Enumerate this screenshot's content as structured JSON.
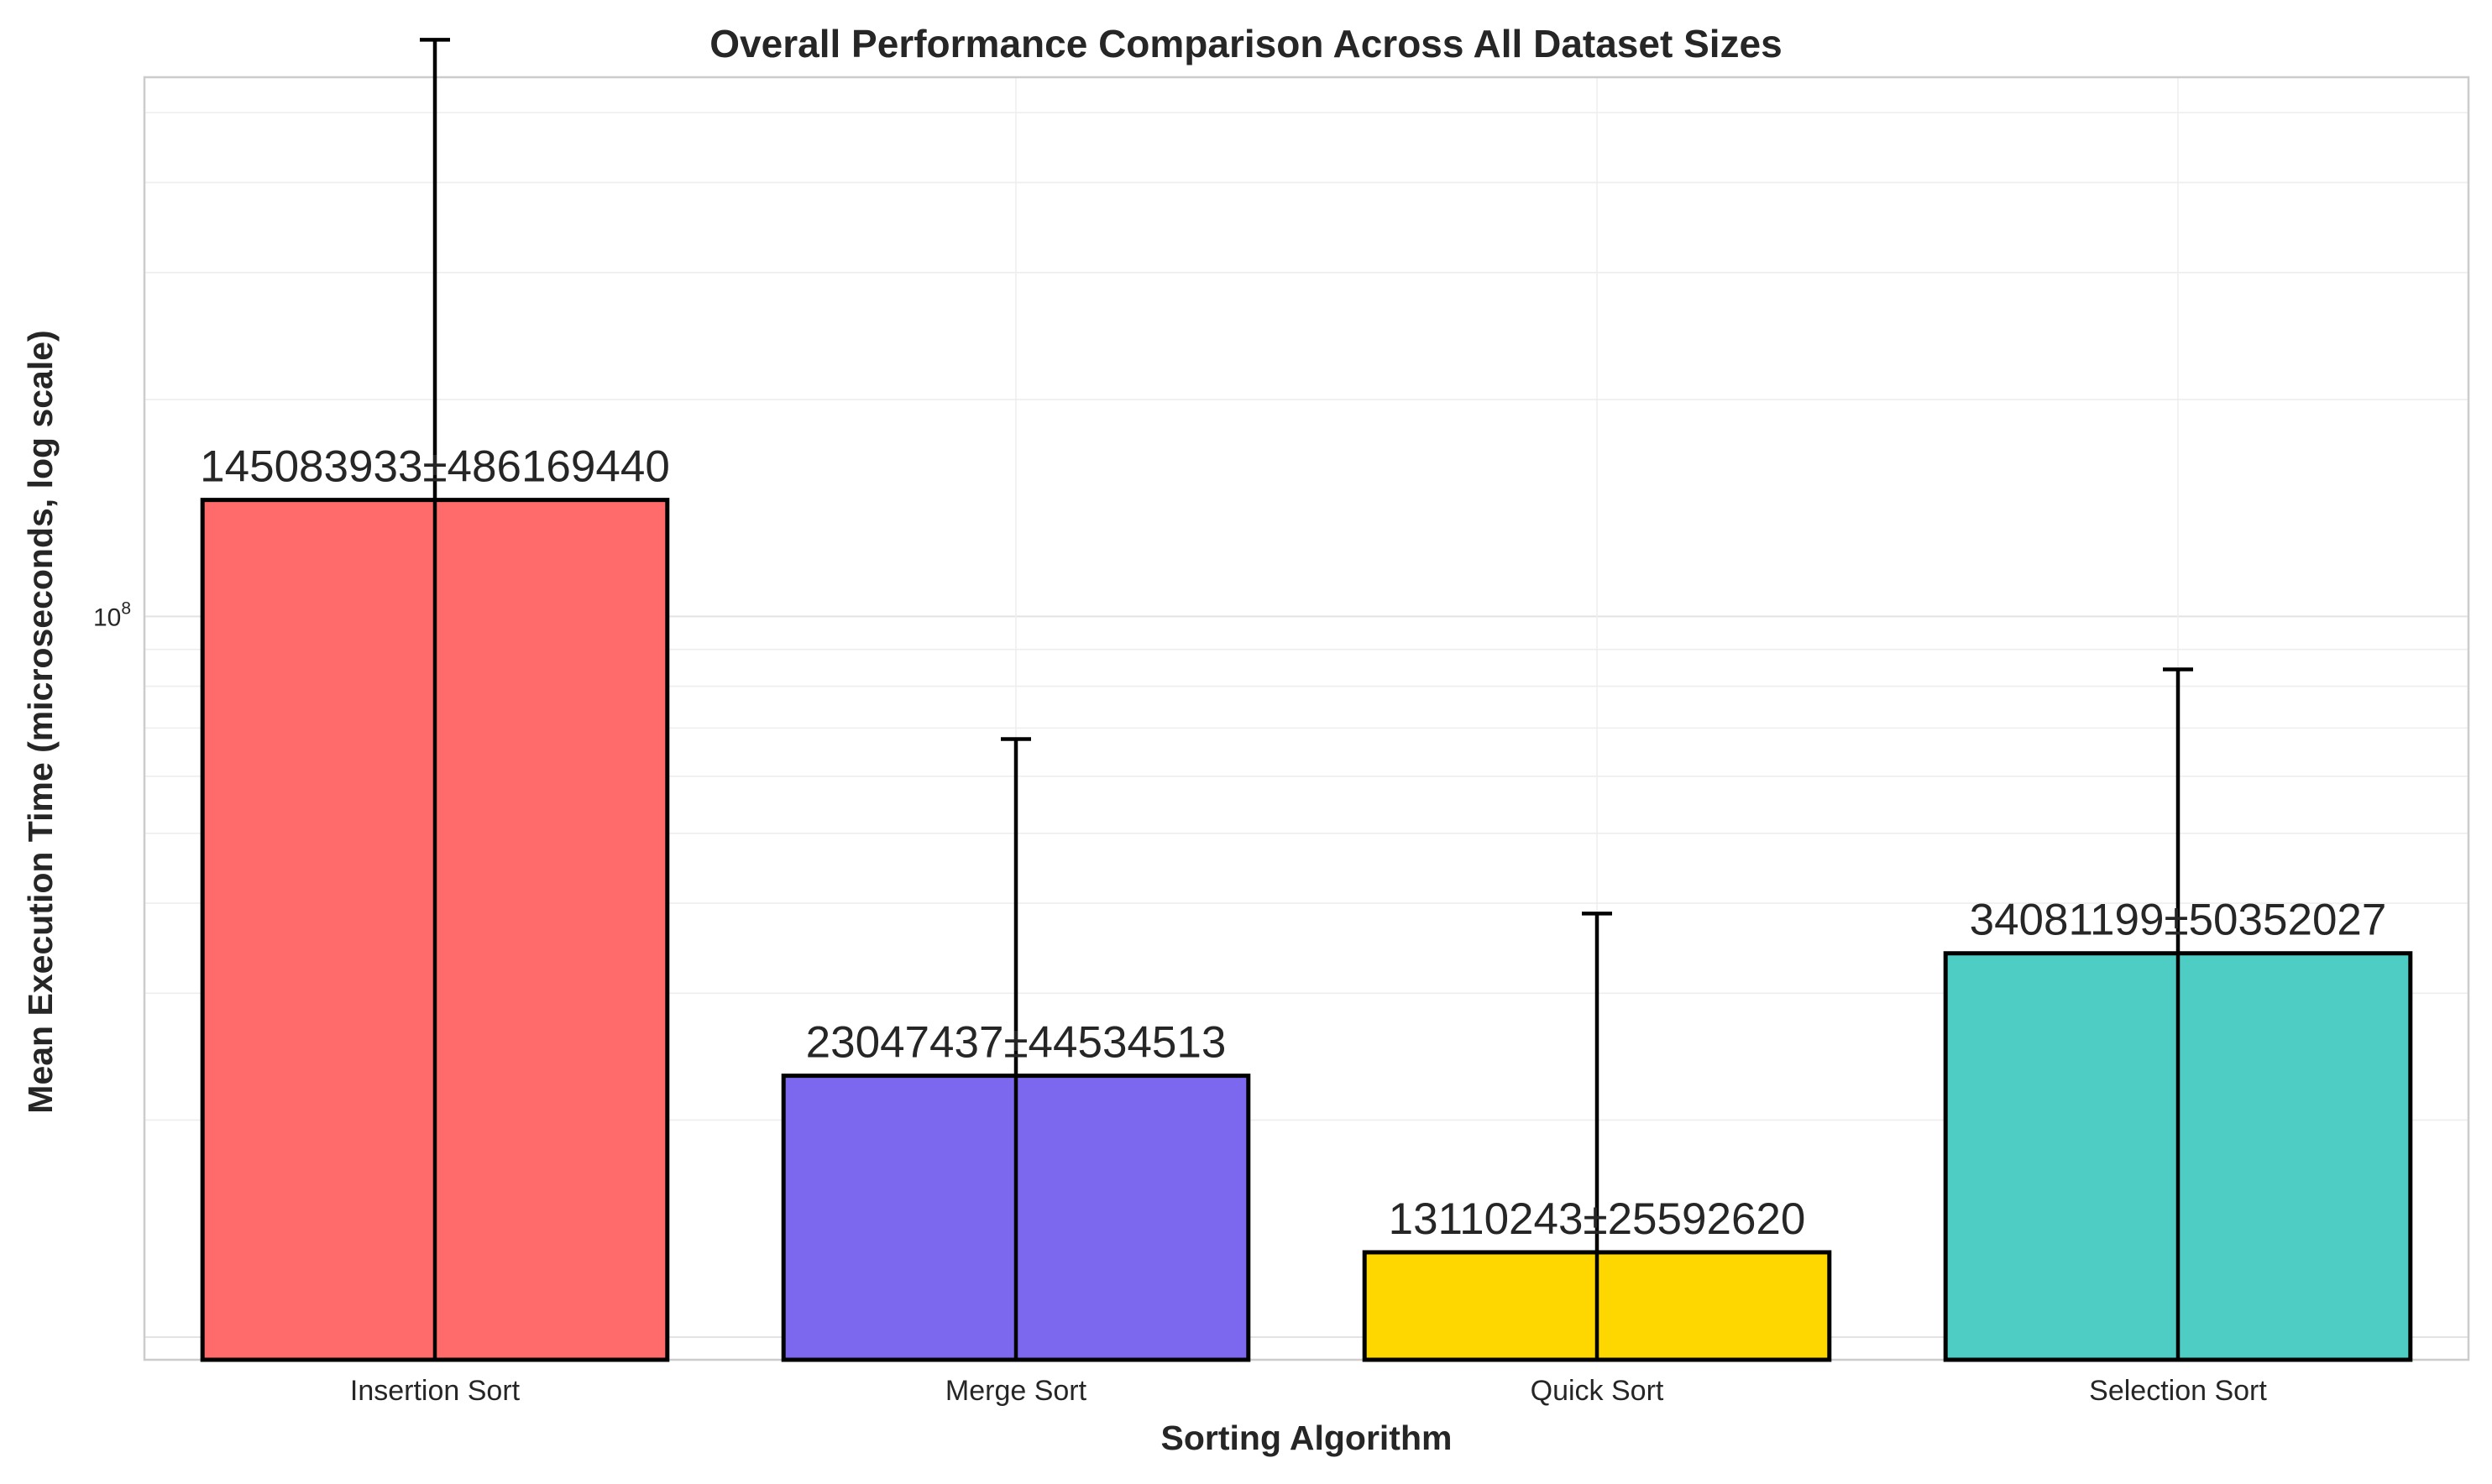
{
  "chart_data": {
    "type": "bar",
    "title": "Overall Performance Comparison Across All Dataset Sizes",
    "xlabel": "Sorting Algorithm",
    "ylabel": "Mean Execution Time (microseconds, log scale)",
    "yscale": "log",
    "ylim": [
      9300000,
      560000000
    ],
    "ytick_label_value": 100000000,
    "ytick_label_text": "10",
    "ytick_label_exp": "8",
    "grid": true,
    "categories": [
      "Insertion Sort",
      "Merge Sort",
      "Quick Sort",
      "Selection Sort"
    ],
    "values": [
      145083933,
      23047437,
      13110243,
      34081199
    ],
    "errors": [
      486169440,
      44534513,
      25592620,
      50352027
    ],
    "data_labels": [
      "145083933±486169440",
      "23047437±44534513",
      "13110243±25592620",
      "34081199±50352027"
    ],
    "colors": [
      "#FF6B6B",
      "#7B68EE",
      "#FFD700",
      "#4ECDC4"
    ]
  }
}
